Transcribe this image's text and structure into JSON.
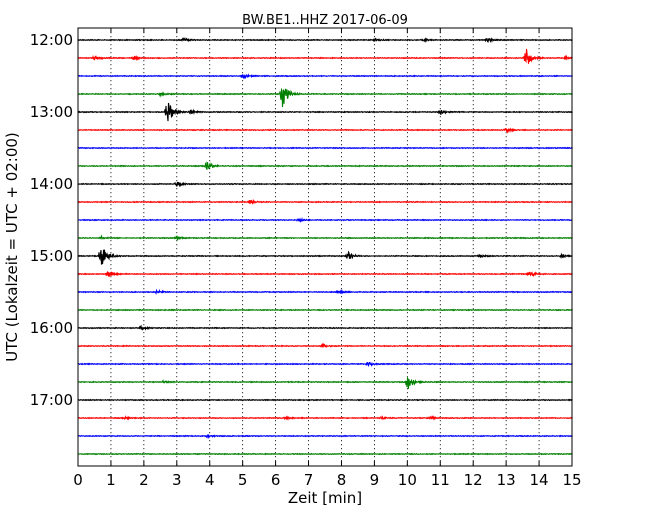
{
  "chart_data": {
    "type": "line",
    "chart_kind": "helicorder (dayplot) seismogram",
    "title": "BW.BE1..HHZ 2017-06-09",
    "xlabel": "Zeit  [min]",
    "ylabel": "UTC (Lokalzeit = UTC + 02:00)",
    "xlim": [
      0,
      15
    ],
    "x_ticks": [
      "0",
      "1",
      "2",
      "3",
      "4",
      "5",
      "6",
      "7",
      "8",
      "9",
      "10",
      "11",
      "12",
      "13",
      "14",
      "15"
    ],
    "y_tick_labels": [
      "12:00",
      "13:00",
      "14:00",
      "15:00",
      "16:00",
      "17:00"
    ],
    "row_start_times": [
      "12:00",
      "12:15",
      "12:30",
      "12:45",
      "13:00",
      "13:15",
      "13:30",
      "13:45",
      "14:00",
      "14:15",
      "14:30",
      "14:45",
      "15:00",
      "15:15",
      "15:30",
      "15:45",
      "16:00",
      "16:15",
      "16:30",
      "16:45",
      "17:00",
      "17:15",
      "17:30",
      "17:45"
    ],
    "row_colors": [
      "#000000",
      "#ff0000",
      "#0000ff",
      "#008000"
    ],
    "grid": "vertical dotted at each minute",
    "events": [
      {
        "row": 0,
        "minute": 3.2,
        "amp": 0.25
      },
      {
        "row": 0,
        "minute": 9.0,
        "amp": 0.2
      },
      {
        "row": 0,
        "minute": 10.5,
        "amp": 0.15
      },
      {
        "row": 0,
        "minute": 12.4,
        "amp": 0.35
      },
      {
        "row": 1,
        "minute": 0.5,
        "amp": 0.3
      },
      {
        "row": 1,
        "minute": 1.7,
        "amp": 0.25
      },
      {
        "row": 1,
        "minute": 13.6,
        "amp": 1.4
      },
      {
        "row": 1,
        "minute": 14.8,
        "amp": 0.2
      },
      {
        "row": 2,
        "minute": 5.0,
        "amp": 0.3
      },
      {
        "row": 3,
        "minute": 2.5,
        "amp": 0.2
      },
      {
        "row": 3,
        "minute": 6.2,
        "amp": 2.2
      },
      {
        "row": 4,
        "minute": 2.7,
        "amp": 2.0
      },
      {
        "row": 4,
        "minute": 3.4,
        "amp": 0.3
      },
      {
        "row": 4,
        "minute": 11.0,
        "amp": 0.4
      },
      {
        "row": 5,
        "minute": 13.0,
        "amp": 0.35
      },
      {
        "row": 7,
        "minute": 3.9,
        "amp": 0.7
      },
      {
        "row": 8,
        "minute": 3.0,
        "amp": 0.35
      },
      {
        "row": 9,
        "minute": 5.2,
        "amp": 0.3
      },
      {
        "row": 10,
        "minute": 6.7,
        "amp": 0.2
      },
      {
        "row": 11,
        "minute": 0.7,
        "amp": 0.3
      },
      {
        "row": 11,
        "minute": 3.0,
        "amp": 0.25
      },
      {
        "row": 12,
        "minute": 0.7,
        "amp": 2.2
      },
      {
        "row": 12,
        "minute": 8.2,
        "amp": 0.6
      },
      {
        "row": 12,
        "minute": 12.2,
        "amp": 0.2
      },
      {
        "row": 12,
        "minute": 14.7,
        "amp": 0.25
      },
      {
        "row": 13,
        "minute": 0.9,
        "amp": 0.6
      },
      {
        "row": 13,
        "minute": 13.7,
        "amp": 0.4
      },
      {
        "row": 14,
        "minute": 2.4,
        "amp": 0.25
      },
      {
        "row": 14,
        "minute": 7.9,
        "amp": 0.25
      },
      {
        "row": 16,
        "minute": 1.9,
        "amp": 0.3
      },
      {
        "row": 17,
        "minute": 7.4,
        "amp": 0.2
      },
      {
        "row": 18,
        "minute": 8.8,
        "amp": 0.25
      },
      {
        "row": 19,
        "minute": 2.6,
        "amp": 0.2
      },
      {
        "row": 19,
        "minute": 10.0,
        "amp": 1.1
      },
      {
        "row": 21,
        "minute": 1.4,
        "amp": 0.15
      },
      {
        "row": 21,
        "minute": 6.3,
        "amp": 0.15
      },
      {
        "row": 21,
        "minute": 9.2,
        "amp": 0.15
      },
      {
        "row": 21,
        "minute": 10.7,
        "amp": 0.2
      },
      {
        "row": 22,
        "minute": 3.9,
        "amp": 0.2
      }
    ]
  }
}
